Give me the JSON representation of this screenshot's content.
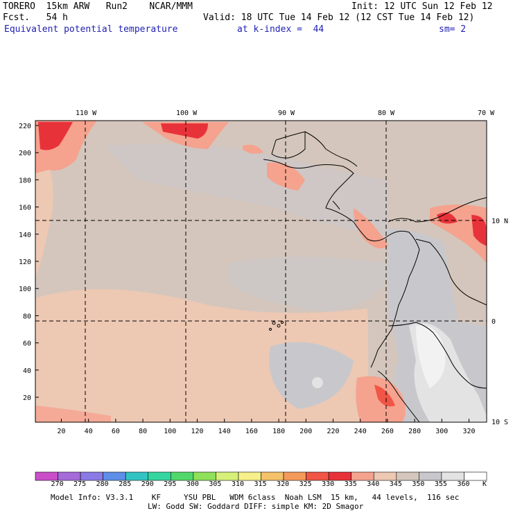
{
  "header": {
    "line1_left": "TORERO  15km ARW   Run2    NCAR/MMM",
    "line1_right": "Init: 12 UTC Sun 12 Feb 12",
    "line2_left": "Fcst.   54 h",
    "line2_right": "Valid: 18 UTC Tue 14 Feb 12 (12 CST Tue 14 Feb 12)",
    "field_label": "Equivalent potential temperature",
    "level_label": "at k-index =  44",
    "smooth_label": "sm= 2"
  },
  "map": {
    "lon_labels": [
      "110 W",
      "100 W",
      "90 W",
      "80 W",
      "70 W"
    ],
    "lat_labels": [
      "10 N",
      "0",
      "10 S"
    ],
    "y_grid_labels": [
      "220",
      "200",
      "180",
      "160",
      "140",
      "120",
      "100",
      "80",
      "60",
      "40",
      "20"
    ],
    "x_grid_labels": [
      "20",
      "40",
      "60",
      "80",
      "100",
      "120",
      "140",
      "160",
      "180",
      "200",
      "220",
      "240",
      "260",
      "280",
      "300",
      "320"
    ]
  },
  "colorbar": {
    "unit": "K",
    "labels": [
      "270",
      "275",
      "280",
      "285",
      "290",
      "295",
      "300",
      "305",
      "310",
      "315",
      "320",
      "325",
      "330",
      "335",
      "340",
      "345",
      "350",
      "355",
      "360"
    ],
    "colors": [
      "#c94fc9",
      "#a56bd9",
      "#8a7ae6",
      "#5f8ee8",
      "#34c3c3",
      "#35d6a0",
      "#52d86a",
      "#8fe05a",
      "#d7f07a",
      "#f7f08a",
      "#f4c26a",
      "#f49a5a",
      "#f05545",
      "#e8323a",
      "#f5a28e",
      "#edc8b3",
      "#d4c6bc",
      "#c8c8cc",
      "#e3e3e3",
      "#ffffff"
    ]
  },
  "footer": {
    "line1": "Model Info: V3.3.1    KF     YSU PBL   WDM 6class  Noah LSM  15 km,   44 levels,  116 sec",
    "line2": "LW: Godd SW: Goddard DIFF: simple KM: 2D Smagor"
  }
}
